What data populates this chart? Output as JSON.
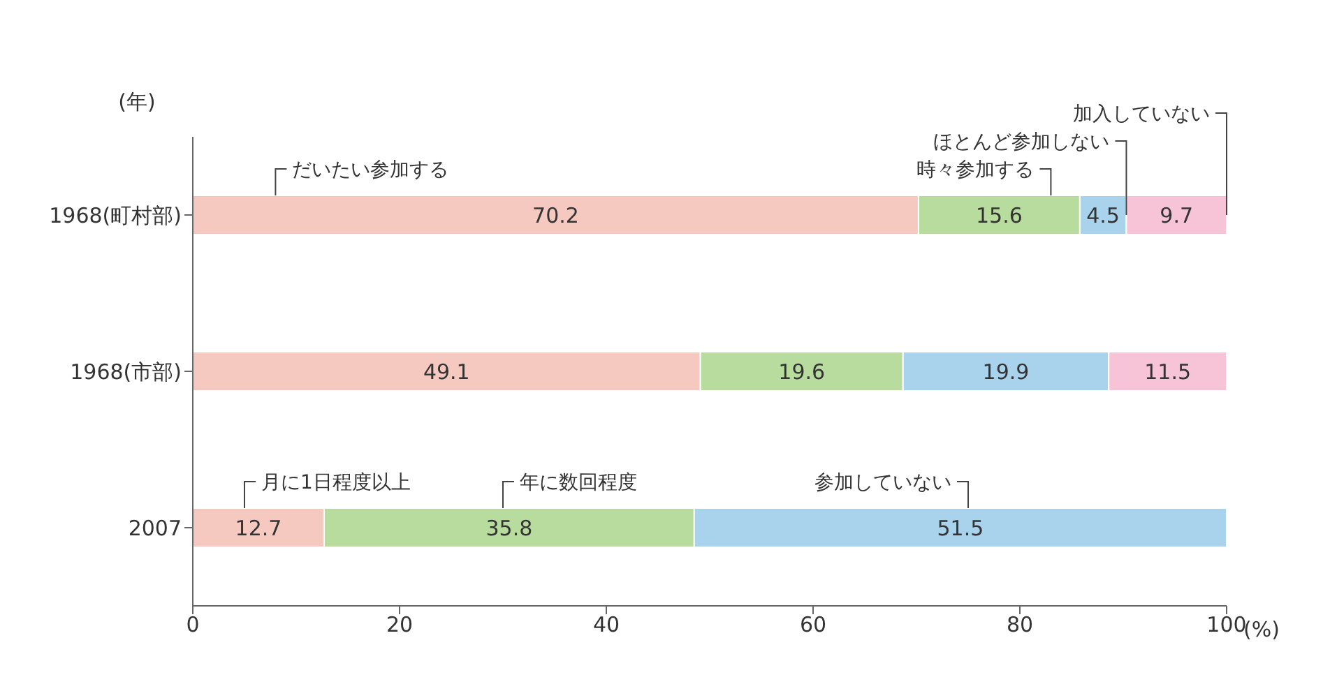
{
  "chart_data": {
    "type": "bar",
    "orientation": "horizontal",
    "stacked": true,
    "data_labels": true,
    "ylabel": "(年)",
    "xlabel": "(%)",
    "categories": [
      "1968(町村部)",
      "1968(市部)",
      "2007"
    ],
    "series": [
      {
        "color": "#f6c9c0",
        "values": [
          70.2,
          49.1,
          12.7
        ]
      },
      {
        "color": "#b8dc9e",
        "values": [
          15.6,
          19.6,
          35.8
        ]
      },
      {
        "color": "#a9d2ec",
        "values": [
          4.5,
          19.9,
          51.5
        ]
      },
      {
        "color": "#f7c3d6",
        "values": [
          9.7,
          11.5,
          null
        ]
      }
    ],
    "xlim": [
      0,
      100
    ],
    "xticks": [
      0,
      20,
      40,
      60,
      80,
      100
    ],
    "annotations": [
      "だいたい参加する",
      "時々参加する",
      {
        "text": "ほとんど参加しない",
        "x": 90.3,
        "y": "1968(町村部)"
      },
      {
        "text": "加入していない",
        "x": 100,
        "y": "1968(町村部)"
      },
      "月に1日程度以上",
      "年に数回程度",
      "参加していない"
    ]
  }
}
